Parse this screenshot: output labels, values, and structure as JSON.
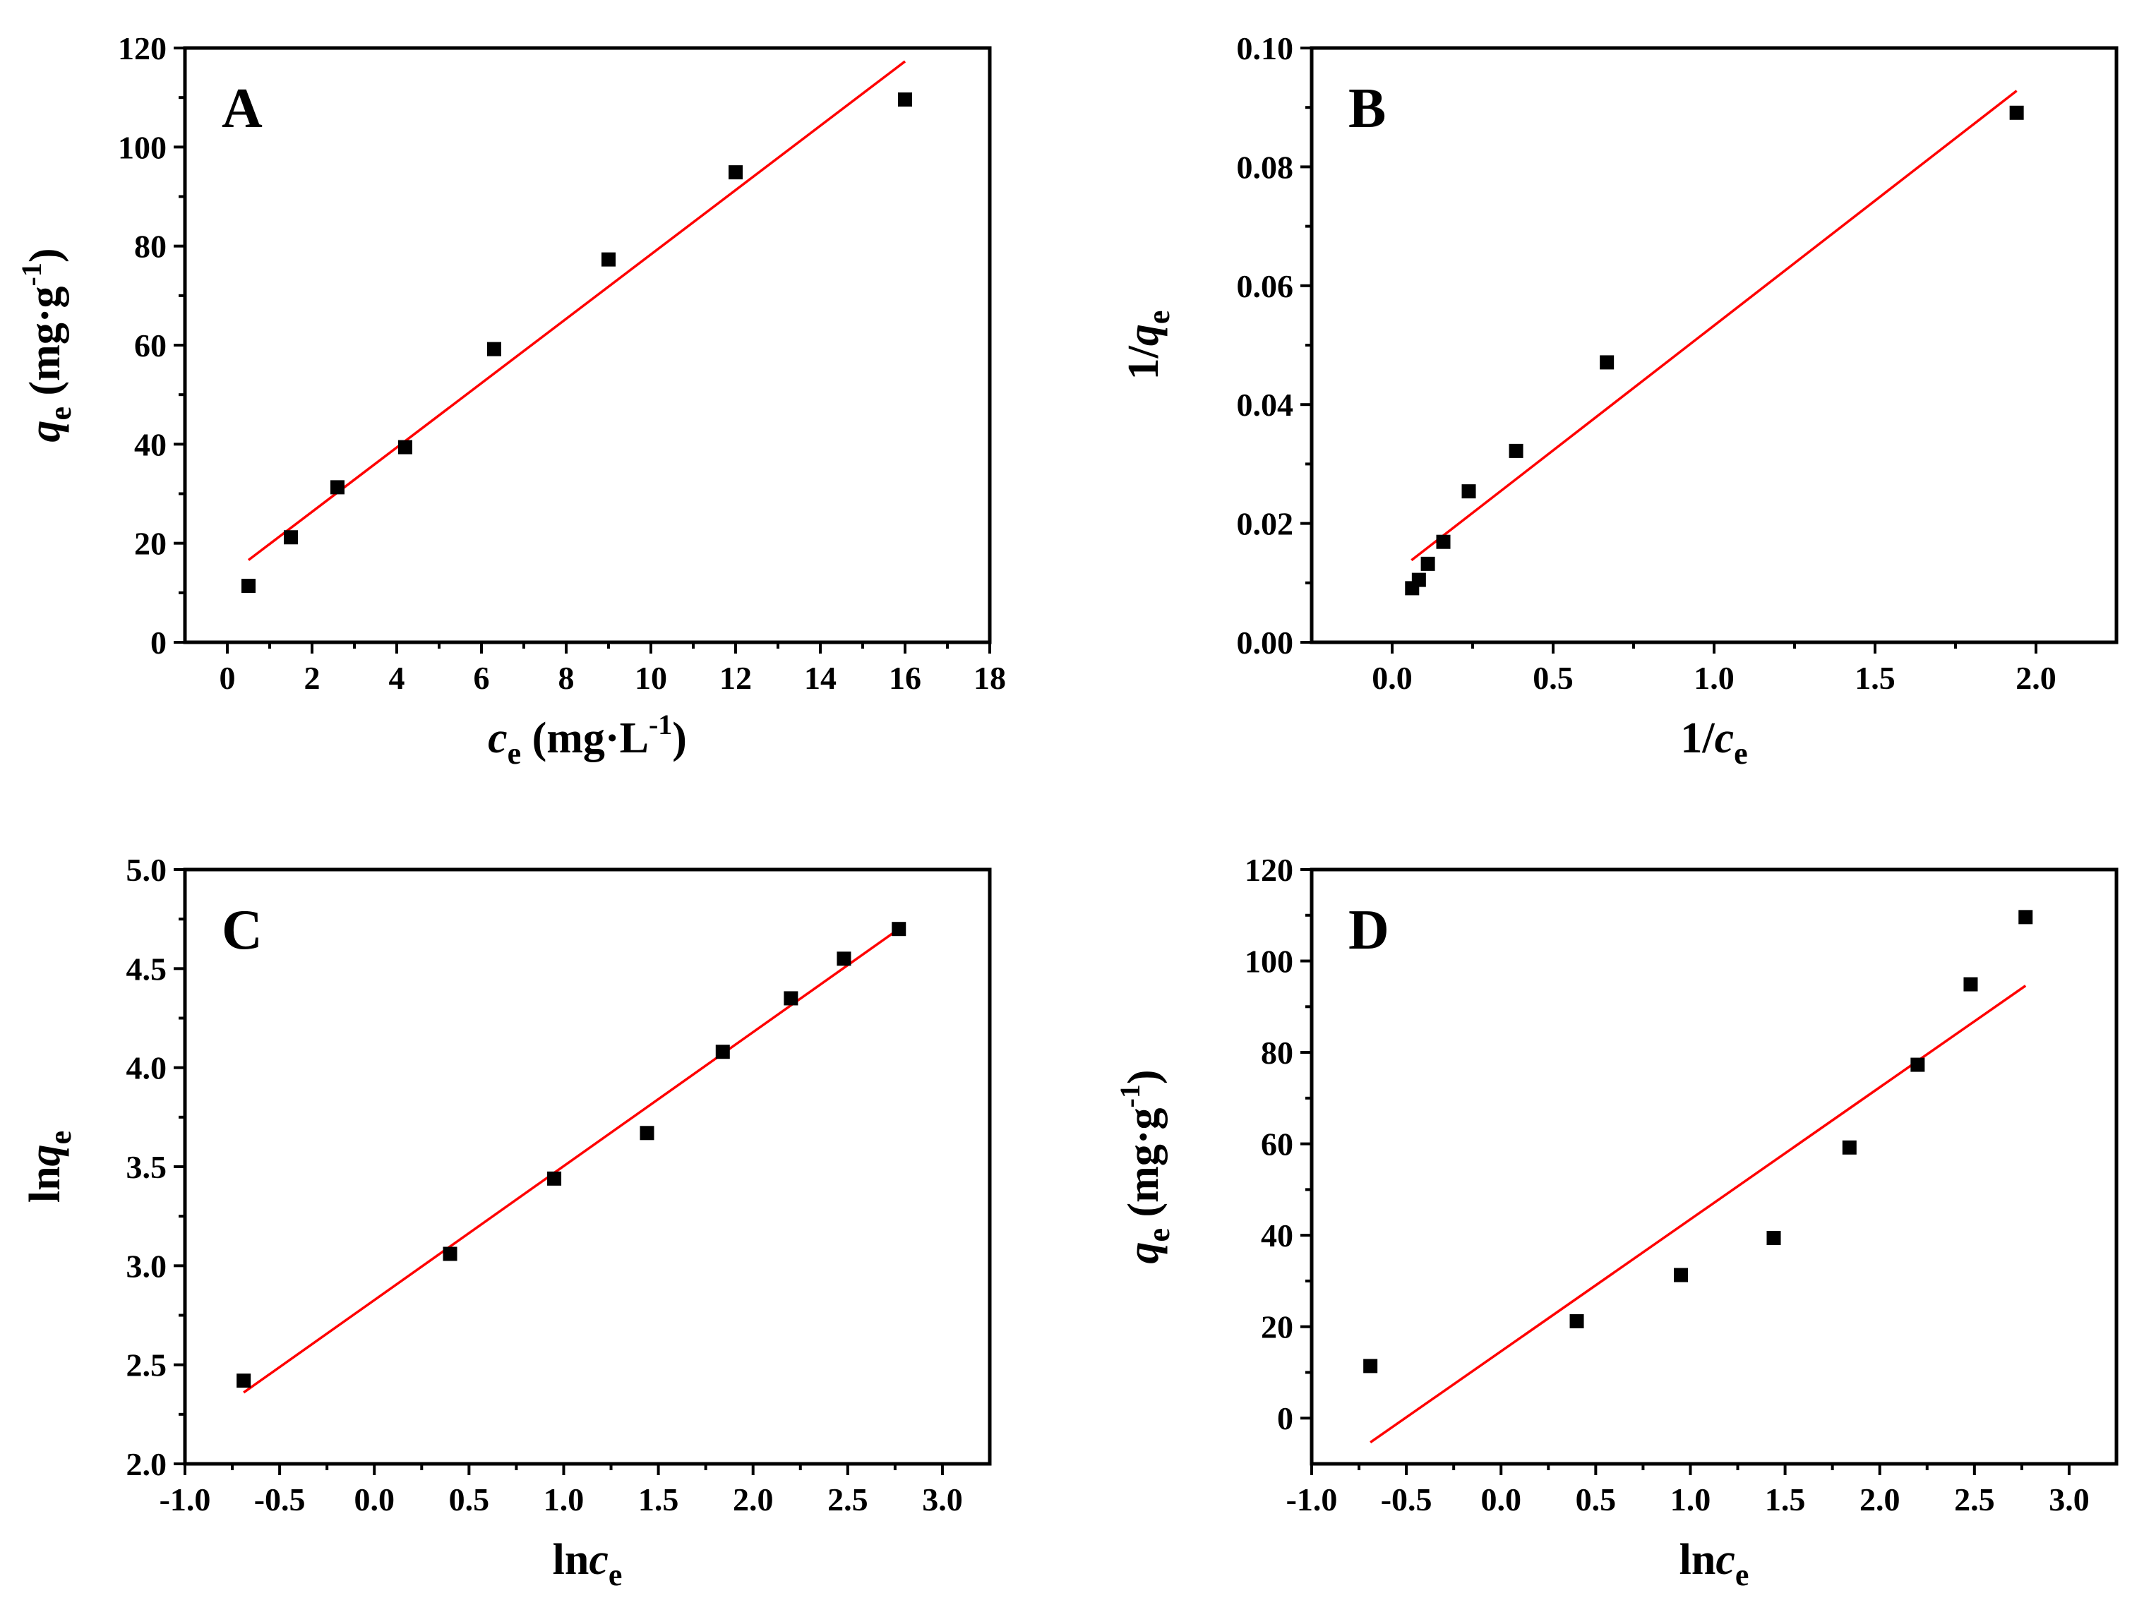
{
  "chart_data": [
    {
      "id": "A",
      "type": "scatter",
      "panel_label": "A",
      "xlabel": {
        "main": "c",
        "main_italic": true,
        "sub": "e",
        "unit": " (mg·L",
        "sup": "-1",
        "close": ")"
      },
      "ylabel": {
        "main": "q",
        "main_italic": true,
        "sub": "e",
        "unit": " (mg·g",
        "sup": "-1",
        "close": ")"
      },
      "xlim": [
        -1,
        18
      ],
      "ylim": [
        0,
        120
      ],
      "x_ticks": [
        0,
        2,
        4,
        6,
        8,
        10,
        12,
        14,
        16,
        18
      ],
      "x_tick_labels": [
        "0",
        "2",
        "4",
        "6",
        "8",
        "10",
        "12",
        "14",
        "16",
        "18"
      ],
      "y_ticks": [
        0,
        20,
        40,
        60,
        80,
        100,
        120
      ],
      "y_tick_labels": [
        "0",
        "20",
        "40",
        "60",
        "80",
        "100",
        "120"
      ],
      "points": {
        "x": [
          0.5,
          1.5,
          2.6,
          4.2,
          6.3,
          9.0,
          12.0,
          16.0
        ],
        "y": [
          11.4,
          21.2,
          31.3,
          39.4,
          59.2,
          77.3,
          94.9,
          109.6
        ]
      },
      "fit": {
        "x": [
          0.5,
          16.0
        ],
        "y": [
          16.6,
          117.3
        ],
        "color": "#ff0000"
      }
    },
    {
      "id": "B",
      "type": "scatter",
      "panel_label": "B",
      "xlabel": {
        "main": "1/",
        "main_italic": false,
        "italic_part": "c",
        "sub": "e",
        "unit": "",
        "sup": "",
        "close": ""
      },
      "ylabel": {
        "main": "1/",
        "main_italic": false,
        "italic_part": "q",
        "sub": "e",
        "unit": "",
        "sup": "",
        "close": ""
      },
      "xlim": [
        -0.25,
        2.25
      ],
      "ylim": [
        0.0,
        0.1
      ],
      "x_ticks": [
        0.0,
        0.5,
        1.0,
        1.5,
        2.0
      ],
      "x_tick_labels": [
        "0.0",
        "0.5",
        "1.0",
        "1.5",
        "2.0"
      ],
      "y_ticks": [
        0.0,
        0.02,
        0.04,
        0.06,
        0.08,
        0.1
      ],
      "y_tick_labels": [
        "0.00",
        "0.02",
        "0.04",
        "0.06",
        "0.08",
        "0.10"
      ],
      "points": {
        "x": [
          0.062,
          0.083,
          0.111,
          0.159,
          0.238,
          0.385,
          0.667,
          1.94
        ],
        "y": [
          0.0091,
          0.0105,
          0.0132,
          0.0169,
          0.0254,
          0.0322,
          0.0471,
          0.0891
        ]
      },
      "fit": {
        "x": [
          0.06,
          1.94
        ],
        "y": [
          0.0138,
          0.0928
        ],
        "color": "#ff0000"
      }
    },
    {
      "id": "C",
      "type": "scatter",
      "panel_label": "C",
      "xlabel": {
        "main": "ln",
        "main_italic": false,
        "italic_part": "c",
        "sub": "e",
        "unit": "",
        "sup": "",
        "close": ""
      },
      "ylabel": {
        "main": "ln",
        "main_italic": false,
        "italic_part": "q",
        "sub": "e",
        "unit": "",
        "sup": "",
        "close": ""
      },
      "xlim": [
        -1.0,
        3.25
      ],
      "ylim": [
        2.0,
        5.0
      ],
      "x_ticks": [
        -1.0,
        -0.5,
        0.0,
        0.5,
        1.0,
        1.5,
        2.0,
        2.5,
        3.0
      ],
      "x_tick_labels": [
        "-1.0",
        "-0.5",
        "0.0",
        "0.5",
        "1.0",
        "1.5",
        "2.0",
        "2.5",
        "3.0"
      ],
      "y_ticks": [
        2.0,
        2.5,
        3.0,
        3.5,
        4.0,
        4.5,
        5.0
      ],
      "y_tick_labels": [
        "2.0",
        "2.5",
        "3.0",
        "3.5",
        "4.0",
        "4.5",
        "5.0"
      ],
      "points": {
        "x": [
          -0.69,
          0.4,
          0.95,
          1.44,
          1.84,
          2.2,
          2.48,
          2.77
        ],
        "y": [
          2.42,
          3.06,
          3.44,
          3.67,
          4.08,
          4.35,
          4.55,
          4.7
        ]
      },
      "fit": {
        "x": [
          -0.69,
          2.77
        ],
        "y": [
          2.36,
          4.7
        ],
        "color": "#ff0000"
      }
    },
    {
      "id": "D",
      "type": "scatter",
      "panel_label": "D",
      "xlabel": {
        "main": "ln",
        "main_italic": false,
        "italic_part": "c",
        "sub": "e",
        "unit": "",
        "sup": "",
        "close": ""
      },
      "ylabel": {
        "main": "q",
        "main_italic": true,
        "sub": "e",
        "unit": " (mg·g",
        "sup": "-1",
        "close": ")"
      },
      "xlim": [
        -1.0,
        3.25
      ],
      "ylim": [
        -10,
        120
      ],
      "x_ticks": [
        -1.0,
        -0.5,
        0.0,
        0.5,
        1.0,
        1.5,
        2.0,
        2.5,
        3.0
      ],
      "x_tick_labels": [
        "-1.0",
        "-0.5",
        "0.0",
        "0.5",
        "1.0",
        "1.5",
        "2.0",
        "2.5",
        "3.0"
      ],
      "y_ticks": [
        0,
        20,
        40,
        60,
        80,
        100,
        120
      ],
      "y_tick_labels": [
        "0",
        "20",
        "40",
        "60",
        "80",
        "100",
        "120"
      ],
      "points": {
        "x": [
          -0.69,
          0.4,
          0.95,
          1.44,
          1.84,
          2.2,
          2.48,
          2.77
        ],
        "y": [
          11.4,
          21.2,
          31.3,
          39.4,
          59.2,
          77.3,
          94.9,
          109.6
        ]
      },
      "fit": {
        "x": [
          -0.69,
          2.77
        ],
        "y": [
          -5.3,
          94.6
        ],
        "color": "#ff0000"
      }
    }
  ]
}
